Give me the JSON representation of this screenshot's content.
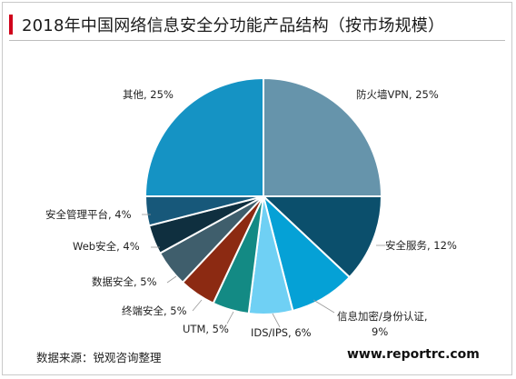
{
  "title": "2018年中国网络信息安全分功能产品结构（按市场规模）",
  "source": "数据来源：锐观咨询整理",
  "website": "www.reportrc.com",
  "chart_data": {
    "type": "pie",
    "slices": [
      {
        "label": "防火墙VPN",
        "value": 25,
        "value_label": "25%",
        "color": "#6694ab"
      },
      {
        "label": "安全服务",
        "value": 12,
        "value_label": "12%",
        "color": "#0b4f6c"
      },
      {
        "label": "信息加密/身份认证,",
        "value": 9,
        "value_label": "9%",
        "color": "#05a1d6"
      },
      {
        "label": "IDS/IPS",
        "value": 6,
        "value_label": "6%",
        "color": "#6fd0f4"
      },
      {
        "label": "UTM",
        "value": 5,
        "value_label": "5%",
        "color": "#138a84"
      },
      {
        "label": "终端安全",
        "value": 5,
        "value_label": "5%",
        "color": "#8c2a12"
      },
      {
        "label": "数据安全",
        "value": 5,
        "value_label": "5%",
        "color": "#3f5e6c"
      },
      {
        "label": "Web安全",
        "value": 4,
        "value_label": "4%",
        "color": "#0f2f3f"
      },
      {
        "label": "安全管理平台",
        "value": 4,
        "value_label": "4%",
        "color": "#17587a"
      },
      {
        "label": "其他",
        "value": 25,
        "value_label": "25%",
        "color": "#1593c4"
      }
    ]
  }
}
